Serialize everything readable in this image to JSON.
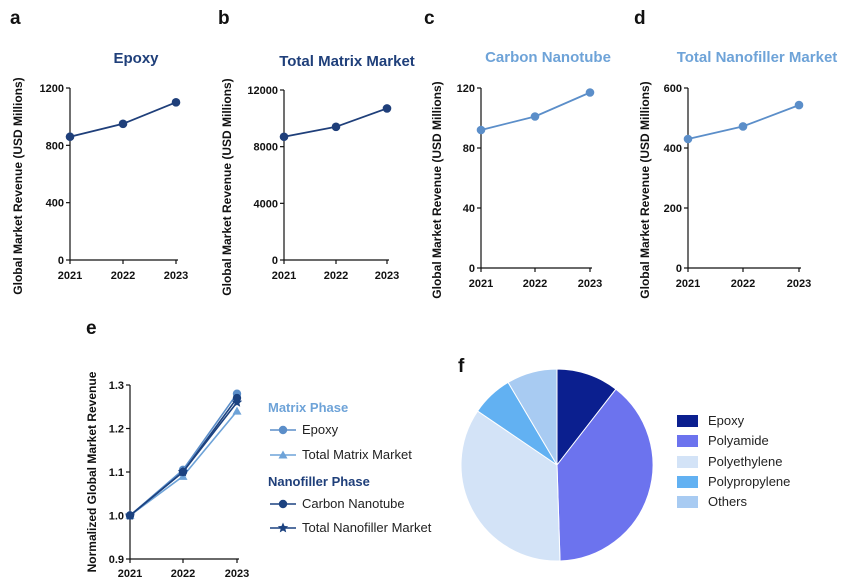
{
  "colors": {
    "dark_blue": "#1f3f7a",
    "mid_blue": "#5b8ec9",
    "light_blue": "#6ea3d8",
    "navy": "#1c4280",
    "pie_epoxy": "#0b1f8f",
    "pie_polyamide": "#6c73ee",
    "pie_polyethylene": "#d3e3f7",
    "pie_polypropylene": "#62b1f2",
    "pie_others": "#a8cbf2"
  },
  "chart_data": [
    {
      "panel": "a",
      "type": "line",
      "title": "Epoxy",
      "ylabel": "Global Market Revenue (USD Millions)",
      "categories": [
        "2021",
        "2022",
        "2023"
      ],
      "values": [
        860,
        950,
        1100
      ],
      "ylim": [
        0,
        1200
      ],
      "yticks": [
        "0",
        "400",
        "800",
        "1200"
      ]
    },
    {
      "panel": "b",
      "type": "line",
      "title": "Total Matrix Market",
      "ylabel": "Global Market Revenue (USD Millions)",
      "categories": [
        "2021",
        "2022",
        "2023"
      ],
      "values": [
        8700,
        9400,
        10700
      ],
      "ylim": [
        0,
        12000
      ],
      "yticks": [
        "0",
        "4000",
        "8000",
        "12000"
      ]
    },
    {
      "panel": "c",
      "type": "line",
      "title": "Carbon Nanotube",
      "ylabel": "Global Market Revenue (USD Millions)",
      "categories": [
        "2021",
        "2022",
        "2023"
      ],
      "values": [
        92,
        101,
        117
      ],
      "ylim": [
        0,
        120
      ],
      "yticks": [
        "0",
        "40",
        "80",
        "120"
      ]
    },
    {
      "panel": "d",
      "type": "line",
      "title": "Total Nanofiller Market",
      "ylabel": "Global Market Revenue (USD Millions)",
      "categories": [
        "2021",
        "2022",
        "2023"
      ],
      "values": [
        430,
        472,
        543
      ],
      "ylim": [
        0,
        600
      ],
      "yticks": [
        "0",
        "200",
        "400",
        "600"
      ]
    },
    {
      "panel": "e",
      "type": "line",
      "ylabel": "Normalized Global Market Revenue",
      "categories": [
        "2021",
        "2022",
        "2023"
      ],
      "ylim": [
        0.9,
        1.3
      ],
      "yticks": [
        "0.9",
        "1.0",
        "1.1",
        "1.2",
        "1.3"
      ],
      "legend_groups": [
        "Matrix Phase",
        "Nanofiller Phase"
      ],
      "series": [
        {
          "name": "Epoxy",
          "group": "Matrix Phase",
          "marker": "circle",
          "values": [
            1.0,
            1.105,
            1.28
          ]
        },
        {
          "name": "Total Matrix Market",
          "group": "Matrix Phase",
          "marker": "triangle",
          "values": [
            1.0,
            1.09,
            1.24
          ]
        },
        {
          "name": "Carbon Nanotube",
          "group": "Nanofiller Phase",
          "marker": "circle",
          "values": [
            1.0,
            1.1,
            1.27
          ]
        },
        {
          "name": "Total Nanofiller Market",
          "group": "Nanofiller Phase",
          "marker": "star",
          "values": [
            1.0,
            1.1,
            1.26
          ]
        }
      ]
    },
    {
      "panel": "f",
      "type": "pie",
      "labels": [
        "Epoxy",
        "Polyamide",
        "Polyethylene",
        "Polypropylene",
        "Others"
      ],
      "values": [
        10.5,
        39.0,
        35.0,
        7.0,
        8.5
      ]
    }
  ]
}
